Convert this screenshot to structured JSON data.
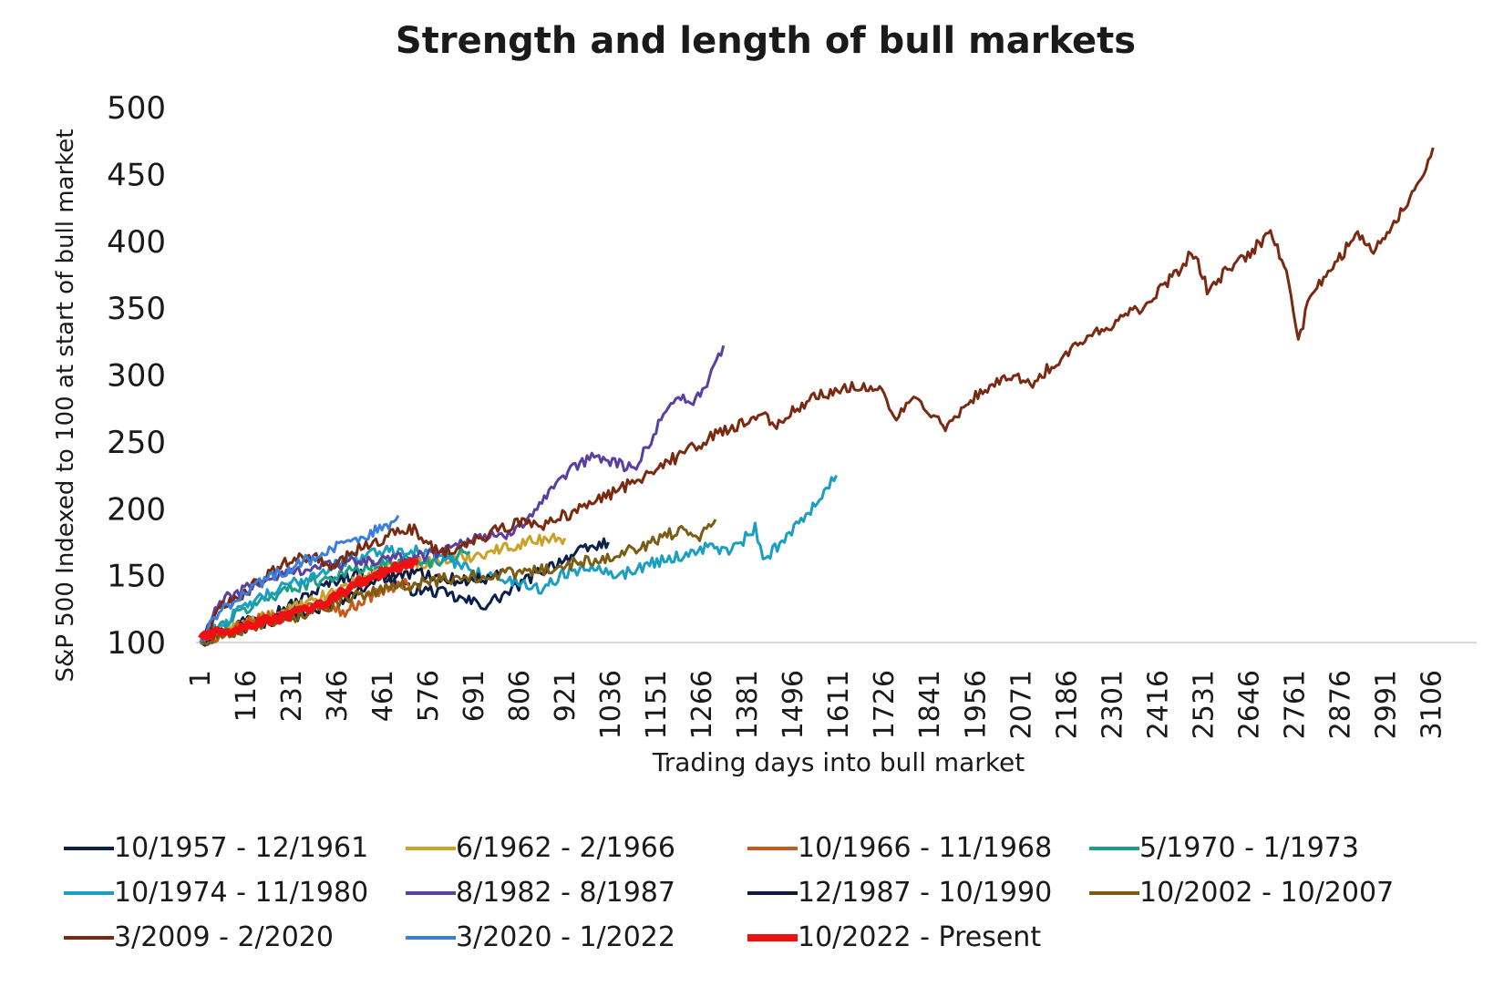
{
  "chart_data": {
    "type": "line",
    "title": "Strength and length of bull markets",
    "xlabel": "Trading days into bull market",
    "ylabel": "S&P 500 Indexed to 100 at start of bull market",
    "ylim": [
      100,
      500
    ],
    "xlim": [
      1,
      3220
    ],
    "yticks": [
      "100",
      "150",
      "200",
      "250",
      "300",
      "350",
      "400",
      "450",
      "500"
    ],
    "xticks": [
      "1",
      "116",
      "231",
      "346",
      "461",
      "576",
      "691",
      "806",
      "921",
      "1036",
      "1151",
      "1266",
      "1381",
      "1496",
      "1611",
      "1726",
      "1841",
      "1956",
      "2071",
      "2186",
      "2301",
      "2416",
      "2531",
      "2646",
      "2761",
      "2876",
      "2991",
      "3106"
    ],
    "legend_position": "bottom",
    "grid": false,
    "series": [
      {
        "name": "10/1957 - 12/1961",
        "color": "#0b1f4d",
        "width": 3,
        "points": [
          [
            1,
            100
          ],
          [
            60,
            108
          ],
          [
            120,
            118
          ],
          [
            180,
            122
          ],
          [
            230,
            128
          ],
          [
            300,
            140
          ],
          [
            350,
            148
          ],
          [
            400,
            152
          ],
          [
            460,
            150
          ],
          [
            520,
            140
          ],
          [
            600,
            138
          ],
          [
            660,
            132
          ],
          [
            720,
            128
          ],
          [
            780,
            138
          ],
          [
            840,
            150
          ],
          [
            900,
            160
          ],
          [
            960,
            168
          ],
          [
            1030,
            175
          ]
        ]
      },
      {
        "name": "6/1962 - 2/1966",
        "color": "#c9a227",
        "width": 3,
        "points": [
          [
            1,
            100
          ],
          [
            60,
            108
          ],
          [
            120,
            115
          ],
          [
            200,
            122
          ],
          [
            280,
            130
          ],
          [
            350,
            140
          ],
          [
            420,
            150
          ],
          [
            480,
            158
          ],
          [
            560,
            160
          ],
          [
            640,
            162
          ],
          [
            700,
            166
          ],
          [
            760,
            170
          ],
          [
            820,
            175
          ],
          [
            880,
            178
          ],
          [
            920,
            178
          ]
        ]
      },
      {
        "name": "10/1966 - 11/1968",
        "color": "#c55a1a",
        "width": 3,
        "points": [
          [
            1,
            100
          ],
          [
            50,
            106
          ],
          [
            100,
            112
          ],
          [
            160,
            118
          ],
          [
            220,
            122
          ],
          [
            280,
            126
          ],
          [
            330,
            128
          ],
          [
            360,
            122
          ],
          [
            400,
            130
          ],
          [
            450,
            138
          ],
          [
            500,
            142
          ],
          [
            540,
            145
          ]
        ]
      },
      {
        "name": "5/1970 - 1/1973",
        "color": "#1a9e8a",
        "width": 3,
        "points": [
          [
            1,
            100
          ],
          [
            40,
            110
          ],
          [
            100,
            122
          ],
          [
            160,
            132
          ],
          [
            220,
            140
          ],
          [
            280,
            145
          ],
          [
            340,
            150
          ],
          [
            400,
            155
          ],
          [
            460,
            158
          ],
          [
            520,
            162
          ],
          [
            580,
            160
          ],
          [
            640,
            165
          ],
          [
            680,
            168
          ]
        ]
      },
      {
        "name": "10/1974 - 11/1980",
        "color": "#1a9ec1",
        "width": 3,
        "points": [
          [
            1,
            100
          ],
          [
            60,
            115
          ],
          [
            120,
            128
          ],
          [
            200,
            140
          ],
          [
            280,
            150
          ],
          [
            360,
            160
          ],
          [
            440,
            168
          ],
          [
            520,
            170
          ],
          [
            600,
            165
          ],
          [
            660,
            158
          ],
          [
            720,
            150
          ],
          [
            800,
            145
          ],
          [
            860,
            140
          ],
          [
            920,
            152
          ],
          [
            1000,
            158
          ],
          [
            1060,
            150
          ],
          [
            1140,
            160
          ],
          [
            1220,
            165
          ],
          [
            1280,
            172
          ],
          [
            1340,
            168
          ],
          [
            1400,
            185
          ],
          [
            1420,
            160
          ],
          [
            1480,
            180
          ],
          [
            1540,
            200
          ],
          [
            1580,
            215
          ],
          [
            1605,
            225
          ]
        ]
      },
      {
        "name": "8/1982 - 8/1987",
        "color": "#5b3fa0",
        "width": 3,
        "points": [
          [
            1,
            100
          ],
          [
            50,
            130
          ],
          [
            100,
            138
          ],
          [
            150,
            145
          ],
          [
            200,
            150
          ],
          [
            260,
            155
          ],
          [
            320,
            158
          ],
          [
            400,
            160
          ],
          [
            480,
            162
          ],
          [
            560,
            165
          ],
          [
            620,
            170
          ],
          [
            700,
            180
          ],
          [
            760,
            178
          ],
          [
            820,
            192
          ],
          [
            880,
            210
          ],
          [
            940,
            230
          ],
          [
            1000,
            240
          ],
          [
            1040,
            235
          ],
          [
            1100,
            230
          ],
          [
            1150,
            260
          ],
          [
            1200,
            285
          ],
          [
            1250,
            280
          ],
          [
            1290,
            300
          ],
          [
            1320,
            322
          ]
        ]
      },
      {
        "name": "12/1987 - 10/1990",
        "color": "#101a3a",
        "width": 3,
        "points": [
          [
            1,
            100
          ],
          [
            60,
            108
          ],
          [
            120,
            112
          ],
          [
            180,
            115
          ],
          [
            240,
            120
          ],
          [
            300,
            125
          ],
          [
            360,
            132
          ],
          [
            420,
            142
          ],
          [
            480,
            150
          ],
          [
            540,
            152
          ],
          [
            600,
            150
          ],
          [
            660,
            146
          ],
          [
            720,
            148
          ],
          [
            760,
            155
          ]
        ]
      },
      {
        "name": "10/2002 - 10/2007",
        "color": "#7a5c12",
        "width": 3,
        "points": [
          [
            1,
            100
          ],
          [
            80,
            108
          ],
          [
            160,
            115
          ],
          [
            240,
            120
          ],
          [
            320,
            128
          ],
          [
            400,
            135
          ],
          [
            480,
            140
          ],
          [
            560,
            145
          ],
          [
            640,
            148
          ],
          [
            720,
            150
          ],
          [
            800,
            152
          ],
          [
            880,
            155
          ],
          [
            960,
            160
          ],
          [
            1040,
            165
          ],
          [
            1100,
            170
          ],
          [
            1160,
            178
          ],
          [
            1220,
            185
          ],
          [
            1260,
            180
          ],
          [
            1300,
            192
          ]
        ]
      },
      {
        "name": "3/2009 - 2/2020",
        "color": "#7a2a10",
        "width": 3,
        "points": [
          [
            1,
            100
          ],
          [
            50,
            125
          ],
          [
            100,
            135
          ],
          [
            160,
            148
          ],
          [
            220,
            160
          ],
          [
            280,
            165
          ],
          [
            330,
            155
          ],
          [
            400,
            170
          ],
          [
            480,
            180
          ],
          [
            540,
            185
          ],
          [
            600,
            168
          ],
          [
            660,
            170
          ],
          [
            720,
            180
          ],
          [
            800,
            190
          ],
          [
            860,
            188
          ],
          [
            920,
            195
          ],
          [
            1000,
            205
          ],
          [
            1060,
            215
          ],
          [
            1120,
            225
          ],
          [
            1180,
            235
          ],
          [
            1240,
            245
          ],
          [
            1300,
            255
          ],
          [
            1360,
            262
          ],
          [
            1420,
            270
          ],
          [
            1460,
            262
          ],
          [
            1500,
            275
          ],
          [
            1560,
            285
          ],
          [
            1620,
            290
          ],
          [
            1680,
            292
          ],
          [
            1720,
            288
          ],
          [
            1750,
            265
          ],
          [
            1800,
            285
          ],
          [
            1850,
            270
          ],
          [
            1880,
            258
          ],
          [
            1920,
            275
          ],
          [
            1980,
            290
          ],
          [
            2040,
            300
          ],
          [
            2100,
            295
          ],
          [
            2160,
            310
          ],
          [
            2220,
            325
          ],
          [
            2280,
            335
          ],
          [
            2340,
            345
          ],
          [
            2400,
            355
          ],
          [
            2440,
            370
          ],
          [
            2480,
            380
          ],
          [
            2500,
            395
          ],
          [
            2540,
            365
          ],
          [
            2580,
            375
          ],
          [
            2620,
            385
          ],
          [
            2660,
            395
          ],
          [
            2700,
            405
          ],
          [
            2740,
            380
          ],
          [
            2770,
            325
          ],
          [
            2800,
            360
          ],
          [
            2840,
            375
          ],
          [
            2880,
            390
          ],
          [
            2920,
            405
          ],
          [
            2960,
            395
          ],
          [
            3000,
            410
          ],
          [
            3040,
            425
          ],
          [
            3080,
            445
          ],
          [
            3110,
            470
          ]
        ]
      },
      {
        "name": "3/2020 - 1/2022",
        "color": "#3a7fe0",
        "width": 3,
        "points": [
          [
            1,
            100
          ],
          [
            30,
            115
          ],
          [
            60,
            125
          ],
          [
            100,
            135
          ],
          [
            150,
            145
          ],
          [
            200,
            152
          ],
          [
            260,
            160
          ],
          [
            320,
            168
          ],
          [
            380,
            175
          ],
          [
            430,
            182
          ],
          [
            470,
            188
          ],
          [
            500,
            195
          ]
        ]
      },
      {
        "name": "10/2022 - Present",
        "color": "#ee1111",
        "width": 7,
        "points": [
          [
            1,
            103
          ],
          [
            40,
            108
          ],
          [
            80,
            110
          ],
          [
            120,
            112
          ],
          [
            160,
            116
          ],
          [
            200,
            118
          ],
          [
            240,
            122
          ],
          [
            280,
            125
          ],
          [
            320,
            130
          ],
          [
            360,
            138
          ],
          [
            400,
            145
          ],
          [
            440,
            150
          ],
          [
            480,
            155
          ],
          [
            520,
            158
          ],
          [
            550,
            160
          ]
        ]
      }
    ]
  }
}
